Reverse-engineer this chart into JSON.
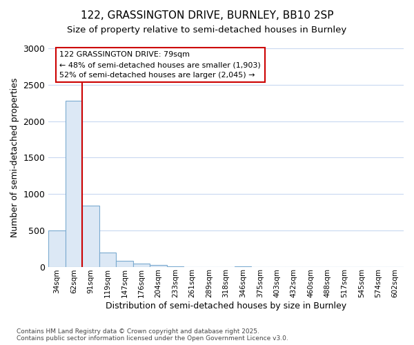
{
  "title1": "122, GRASSINGTON DRIVE, BURNLEY, BB10 2SP",
  "title2": "Size of property relative to semi-detached houses in Burnley",
  "xlabel": "Distribution of semi-detached houses by size in Burnley",
  "ylabel": "Number of semi-detached properties",
  "footer": "Contains HM Land Registry data © Crown copyright and database right 2025.\nContains public sector information licensed under the Open Government Licence v3.0.",
  "bins": [
    "34sqm",
    "62sqm",
    "91sqm",
    "119sqm",
    "147sqm",
    "176sqm",
    "204sqm",
    "233sqm",
    "261sqm",
    "289sqm",
    "318sqm",
    "346sqm",
    "375sqm",
    "403sqm",
    "432sqm",
    "460sqm",
    "488sqm",
    "517sqm",
    "545sqm",
    "574sqm",
    "602sqm"
  ],
  "values": [
    500,
    2280,
    840,
    190,
    80,
    40,
    20,
    5,
    0,
    0,
    0,
    8,
    0,
    0,
    0,
    0,
    0,
    0,
    0,
    0,
    0
  ],
  "bar_color": "#dce8f5",
  "bar_edge_color": "#7aaad0",
  "grid_color": "#c8d8f0",
  "bg_color": "#ffffff",
  "annotation_text": "122 GRASSINGTON DRIVE: 79sqm\n← 48% of semi-detached houses are smaller (1,903)\n52% of semi-detached houses are larger (2,045) →",
  "vline_color": "#cc0000",
  "annotation_box_bg": "#ffffff",
  "annotation_box_edge": "#cc0000",
  "ylim": [
    0,
    3000
  ],
  "yticks": [
    0,
    500,
    1000,
    1500,
    2000,
    2500,
    3000
  ]
}
